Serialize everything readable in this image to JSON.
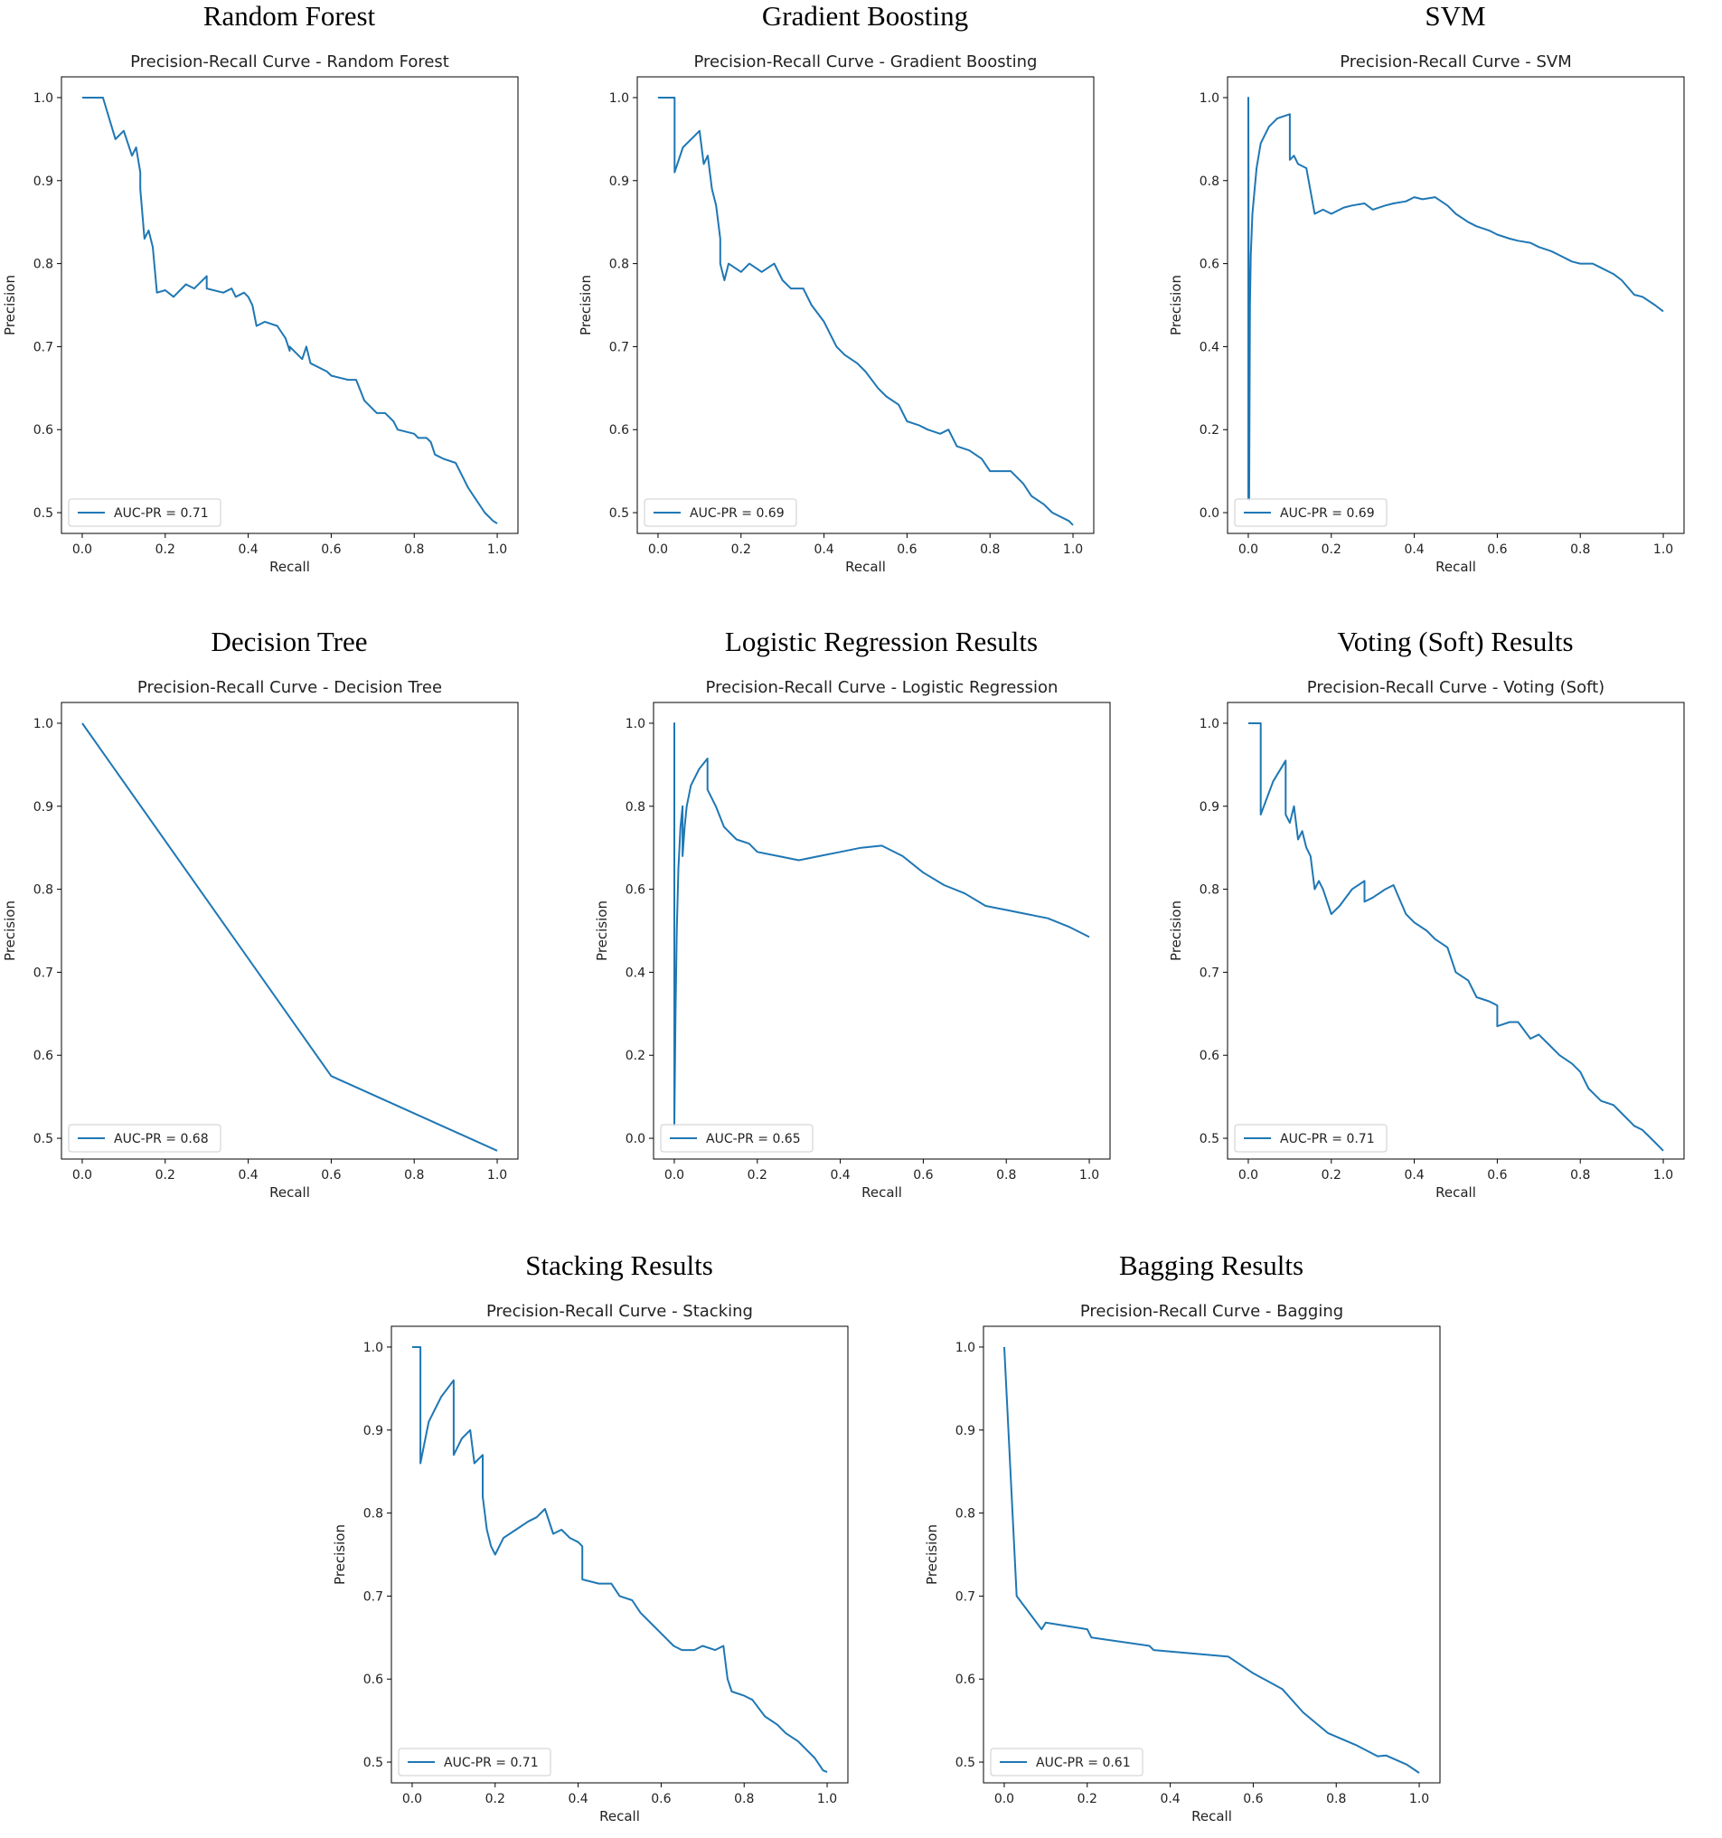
{
  "colors": {
    "line": "#1f77b4",
    "axis": "#000000",
    "text": "#222222"
  },
  "chart_data": [
    {
      "type": "line",
      "panel_title": "Random Forest",
      "title": "Precision-Recall Curve - Random Forest",
      "xlabel": "Recall",
      "ylabel": "Precision",
      "xlim": [
        -0.05,
        1.05
      ],
      "ylim": [
        0.475,
        1.025
      ],
      "xticks": [
        0.0,
        0.2,
        0.4,
        0.6,
        0.8,
        1.0
      ],
      "yticks": [
        0.5,
        0.6,
        0.7,
        0.8,
        0.9,
        1.0
      ],
      "series": [
        {
          "name": "AUC-PR = 0.71",
          "x": [
            0.0,
            0.05,
            0.08,
            0.1,
            0.12,
            0.13,
            0.14,
            0.14,
            0.15,
            0.16,
            0.17,
            0.18,
            0.2,
            0.22,
            0.25,
            0.27,
            0.3,
            0.3,
            0.34,
            0.36,
            0.37,
            0.39,
            0.4,
            0.41,
            0.42,
            0.44,
            0.47,
            0.49,
            0.5,
            0.5,
            0.53,
            0.54,
            0.55,
            0.59,
            0.6,
            0.64,
            0.66,
            0.68,
            0.7,
            0.71,
            0.73,
            0.75,
            0.76,
            0.8,
            0.81,
            0.83,
            0.84,
            0.85,
            0.87,
            0.9,
            0.92,
            0.93,
            0.95,
            0.97,
            0.99,
            1.0
          ],
          "y": [
            1.0,
            1.0,
            0.95,
            0.96,
            0.93,
            0.94,
            0.91,
            0.89,
            0.83,
            0.84,
            0.82,
            0.765,
            0.768,
            0.76,
            0.775,
            0.77,
            0.785,
            0.77,
            0.765,
            0.77,
            0.76,
            0.765,
            0.76,
            0.75,
            0.725,
            0.73,
            0.725,
            0.71,
            0.695,
            0.7,
            0.685,
            0.7,
            0.68,
            0.67,
            0.665,
            0.66,
            0.66,
            0.635,
            0.625,
            0.62,
            0.62,
            0.61,
            0.6,
            0.595,
            0.59,
            0.59,
            0.585,
            0.57,
            0.565,
            0.56,
            0.54,
            0.53,
            0.515,
            0.5,
            0.49,
            0.487
          ]
        }
      ]
    },
    {
      "type": "line",
      "panel_title": "Gradient Boosting",
      "title": "Precision-Recall Curve - Gradient Boosting",
      "xlabel": "Recall",
      "ylabel": "Precision",
      "xlim": [
        -0.05,
        1.05
      ],
      "ylim": [
        0.475,
        1.025
      ],
      "xticks": [
        0.0,
        0.2,
        0.4,
        0.6,
        0.8,
        1.0
      ],
      "yticks": [
        0.5,
        0.6,
        0.7,
        0.8,
        0.9,
        1.0
      ],
      "series": [
        {
          "name": "AUC-PR = 0.69",
          "x": [
            0.0,
            0.04,
            0.04,
            0.06,
            0.08,
            0.1,
            0.11,
            0.12,
            0.13,
            0.14,
            0.15,
            0.15,
            0.16,
            0.17,
            0.2,
            0.22,
            0.25,
            0.28,
            0.3,
            0.32,
            0.35,
            0.37,
            0.4,
            0.43,
            0.45,
            0.48,
            0.5,
            0.53,
            0.55,
            0.58,
            0.6,
            0.63,
            0.65,
            0.68,
            0.7,
            0.72,
            0.75,
            0.78,
            0.8,
            0.82,
            0.85,
            0.88,
            0.9,
            0.93,
            0.95,
            0.97,
            0.99,
            1.0
          ],
          "y": [
            1.0,
            1.0,
            0.91,
            0.94,
            0.95,
            0.96,
            0.92,
            0.93,
            0.89,
            0.87,
            0.83,
            0.8,
            0.78,
            0.8,
            0.79,
            0.8,
            0.79,
            0.8,
            0.78,
            0.77,
            0.77,
            0.75,
            0.73,
            0.7,
            0.69,
            0.68,
            0.67,
            0.65,
            0.64,
            0.63,
            0.61,
            0.605,
            0.6,
            0.595,
            0.6,
            0.58,
            0.575,
            0.565,
            0.55,
            0.55,
            0.55,
            0.535,
            0.52,
            0.51,
            0.5,
            0.495,
            0.49,
            0.485
          ]
        }
      ]
    },
    {
      "type": "line",
      "panel_title": "SVM",
      "title": "Precision-Recall Curve - SVM",
      "xlabel": "Recall",
      "ylabel": "Precision",
      "xlim": [
        -0.05,
        1.05
      ],
      "ylim": [
        -0.05,
        1.05
      ],
      "xticks": [
        0.0,
        0.2,
        0.4,
        0.6,
        0.8,
        1.0
      ],
      "yticks": [
        0.0,
        0.2,
        0.4,
        0.6,
        0.8,
        1.0
      ],
      "series": [
        {
          "name": "AUC-PR = 0.69",
          "x": [
            0.0,
            0.0,
            0.002,
            0.004,
            0.006,
            0.01,
            0.02,
            0.03,
            0.05,
            0.07,
            0.1,
            0.1,
            0.11,
            0.12,
            0.14,
            0.16,
            0.18,
            0.2,
            0.23,
            0.25,
            0.28,
            0.3,
            0.33,
            0.35,
            0.38,
            0.4,
            0.42,
            0.45,
            0.48,
            0.5,
            0.53,
            0.55,
            0.58,
            0.6,
            0.63,
            0.65,
            0.68,
            0.7,
            0.73,
            0.75,
            0.78,
            0.8,
            0.83,
            0.85,
            0.88,
            0.9,
            0.93,
            0.95,
            0.98,
            1.0
          ],
          "y": [
            0.03,
            1.0,
            0.03,
            0.5,
            0.62,
            0.72,
            0.83,
            0.89,
            0.93,
            0.95,
            0.96,
            0.85,
            0.86,
            0.84,
            0.83,
            0.72,
            0.73,
            0.72,
            0.735,
            0.74,
            0.745,
            0.73,
            0.74,
            0.745,
            0.75,
            0.76,
            0.755,
            0.76,
            0.74,
            0.72,
            0.7,
            0.69,
            0.68,
            0.67,
            0.66,
            0.655,
            0.65,
            0.64,
            0.63,
            0.62,
            0.605,
            0.6,
            0.6,
            0.59,
            0.575,
            0.56,
            0.525,
            0.52,
            0.5,
            0.485
          ]
        }
      ]
    },
    {
      "type": "line",
      "panel_title": "Decision Tree",
      "title": "Precision-Recall Curve - Decision Tree",
      "xlabel": "Recall",
      "ylabel": "Precision",
      "xlim": [
        -0.05,
        1.05
      ],
      "ylim": [
        0.475,
        1.025
      ],
      "xticks": [
        0.0,
        0.2,
        0.4,
        0.6,
        0.8,
        1.0
      ],
      "yticks": [
        0.5,
        0.6,
        0.7,
        0.8,
        0.9,
        1.0
      ],
      "series": [
        {
          "name": "AUC-PR = 0.68",
          "x": [
            0.0,
            0.6,
            1.0
          ],
          "y": [
            1.0,
            0.575,
            0.485
          ]
        }
      ]
    },
    {
      "type": "line",
      "panel_title": "Logistic Regression Results",
      "title": "Precision-Recall Curve - Logistic Regression",
      "xlabel": "Recall",
      "ylabel": "Precision",
      "xlim": [
        -0.05,
        1.05
      ],
      "ylim": [
        -0.05,
        1.05
      ],
      "xticks": [
        0.0,
        0.2,
        0.4,
        0.6,
        0.8,
        1.0
      ],
      "yticks": [
        0.0,
        0.2,
        0.4,
        0.6,
        0.8,
        1.0
      ],
      "series": [
        {
          "name": "AUC-PR = 0.65",
          "x": [
            0.0,
            0.0,
            0.0,
            0.003,
            0.006,
            0.01,
            0.015,
            0.02,
            0.02,
            0.025,
            0.03,
            0.04,
            0.06,
            0.08,
            0.08,
            0.1,
            0.12,
            0.15,
            0.18,
            0.2,
            0.25,
            0.3,
            0.35,
            0.4,
            0.45,
            0.5,
            0.55,
            0.6,
            0.65,
            0.7,
            0.75,
            0.8,
            0.85,
            0.9,
            0.95,
            1.0
          ],
          "y": [
            0.03,
            1.0,
            0.03,
            0.3,
            0.5,
            0.65,
            0.75,
            0.8,
            0.68,
            0.75,
            0.8,
            0.85,
            0.89,
            0.915,
            0.84,
            0.8,
            0.75,
            0.72,
            0.71,
            0.69,
            0.68,
            0.67,
            0.68,
            0.69,
            0.7,
            0.705,
            0.68,
            0.64,
            0.61,
            0.59,
            0.56,
            0.55,
            0.54,
            0.53,
            0.51,
            0.485
          ]
        }
      ]
    },
    {
      "type": "line",
      "panel_title": "Voting (Soft) Results",
      "title": "Precision-Recall Curve - Voting (Soft)",
      "xlabel": "Recall",
      "ylabel": "Precision",
      "xlim": [
        -0.05,
        1.05
      ],
      "ylim": [
        0.475,
        1.025
      ],
      "xticks": [
        0.0,
        0.2,
        0.4,
        0.6,
        0.8,
        1.0
      ],
      "yticks": [
        0.5,
        0.6,
        0.7,
        0.8,
        0.9,
        1.0
      ],
      "series": [
        {
          "name": "AUC-PR = 0.71",
          "x": [
            0.0,
            0.03,
            0.03,
            0.06,
            0.09,
            0.09,
            0.1,
            0.11,
            0.12,
            0.13,
            0.14,
            0.15,
            0.16,
            0.17,
            0.18,
            0.2,
            0.22,
            0.25,
            0.28,
            0.28,
            0.3,
            0.33,
            0.35,
            0.38,
            0.4,
            0.43,
            0.45,
            0.48,
            0.5,
            0.53,
            0.55,
            0.58,
            0.6,
            0.6,
            0.63,
            0.65,
            0.68,
            0.7,
            0.73,
            0.75,
            0.78,
            0.8,
            0.82,
            0.85,
            0.88,
            0.9,
            0.93,
            0.95,
            0.97,
            0.99,
            1.0
          ],
          "y": [
            1.0,
            1.0,
            0.89,
            0.93,
            0.955,
            0.89,
            0.88,
            0.9,
            0.86,
            0.87,
            0.85,
            0.84,
            0.8,
            0.81,
            0.8,
            0.77,
            0.78,
            0.8,
            0.81,
            0.785,
            0.79,
            0.8,
            0.805,
            0.77,
            0.76,
            0.75,
            0.74,
            0.73,
            0.7,
            0.69,
            0.67,
            0.665,
            0.66,
            0.635,
            0.64,
            0.64,
            0.62,
            0.625,
            0.61,
            0.6,
            0.59,
            0.58,
            0.56,
            0.545,
            0.54,
            0.53,
            0.515,
            0.51,
            0.5,
            0.49,
            0.485
          ]
        }
      ]
    },
    {
      "type": "line",
      "panel_title": "Stacking Results",
      "title": "Precision-Recall Curve - Stacking",
      "xlabel": "Recall",
      "ylabel": "Precision",
      "xlim": [
        -0.05,
        1.05
      ],
      "ylim": [
        0.475,
        1.025
      ],
      "xticks": [
        0.0,
        0.2,
        0.4,
        0.6,
        0.8,
        1.0
      ],
      "yticks": [
        0.5,
        0.6,
        0.7,
        0.8,
        0.9,
        1.0
      ],
      "series": [
        {
          "name": "AUC-PR = 0.71",
          "x": [
            0.0,
            0.02,
            0.02,
            0.04,
            0.07,
            0.1,
            0.1,
            0.12,
            0.14,
            0.15,
            0.17,
            0.17,
            0.18,
            0.19,
            0.2,
            0.22,
            0.25,
            0.28,
            0.3,
            0.32,
            0.34,
            0.36,
            0.38,
            0.4,
            0.41,
            0.41,
            0.45,
            0.48,
            0.5,
            0.53,
            0.55,
            0.58,
            0.6,
            0.63,
            0.65,
            0.68,
            0.7,
            0.73,
            0.75,
            0.76,
            0.77,
            0.8,
            0.82,
            0.85,
            0.88,
            0.9,
            0.93,
            0.95,
            0.97,
            0.99,
            1.0
          ],
          "y": [
            1.0,
            1.0,
            0.86,
            0.91,
            0.94,
            0.96,
            0.87,
            0.89,
            0.9,
            0.86,
            0.87,
            0.82,
            0.78,
            0.76,
            0.75,
            0.77,
            0.78,
            0.79,
            0.795,
            0.805,
            0.775,
            0.78,
            0.77,
            0.765,
            0.76,
            0.72,
            0.715,
            0.715,
            0.7,
            0.695,
            0.68,
            0.665,
            0.655,
            0.64,
            0.635,
            0.635,
            0.64,
            0.635,
            0.64,
            0.6,
            0.585,
            0.58,
            0.575,
            0.555,
            0.545,
            0.535,
            0.525,
            0.515,
            0.505,
            0.49,
            0.488
          ]
        }
      ]
    },
    {
      "type": "line",
      "panel_title": "Bagging Results",
      "title": "Precision-Recall Curve - Bagging",
      "xlabel": "Recall",
      "ylabel": "Precision",
      "xlim": [
        -0.05,
        1.05
      ],
      "ylim": [
        0.475,
        1.025
      ],
      "xticks": [
        0.0,
        0.2,
        0.4,
        0.6,
        0.8,
        1.0
      ],
      "yticks": [
        0.5,
        0.6,
        0.7,
        0.8,
        0.9,
        1.0
      ],
      "series": [
        {
          "name": "AUC-PR = 0.61",
          "x": [
            0.0,
            0.03,
            0.09,
            0.1,
            0.2,
            0.21,
            0.35,
            0.36,
            0.54,
            0.6,
            0.67,
            0.72,
            0.78,
            0.85,
            0.9,
            0.92,
            0.97,
            1.0
          ],
          "y": [
            1.0,
            0.7,
            0.66,
            0.668,
            0.66,
            0.65,
            0.64,
            0.635,
            0.627,
            0.607,
            0.588,
            0.56,
            0.535,
            0.52,
            0.507,
            0.508,
            0.497,
            0.487
          ]
        }
      ]
    }
  ]
}
